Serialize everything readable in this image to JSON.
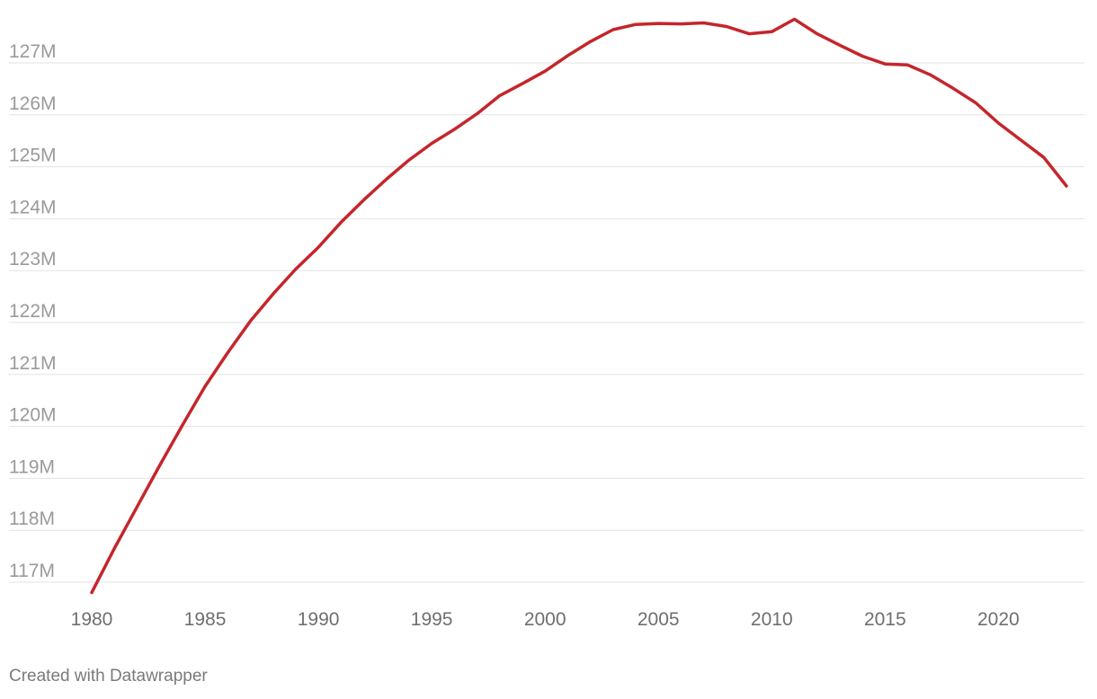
{
  "chart_data": {
    "type": "line",
    "title": "",
    "xlabel": "",
    "ylabel": "",
    "xlim": [
      1980,
      2023
    ],
    "ylim": [
      116.7,
      127.9
    ],
    "y_ticks": [
      117,
      118,
      119,
      120,
      121,
      122,
      123,
      124,
      125,
      126,
      127
    ],
    "y_tick_labels": [
      "117M",
      "118M",
      "119M",
      "120M",
      "121M",
      "122M",
      "123M",
      "124M",
      "125M",
      "126M",
      "127M"
    ],
    "x_ticks": [
      1980,
      1985,
      1990,
      1995,
      2000,
      2005,
      2010,
      2015,
      2020
    ],
    "x_tick_labels": [
      "1980",
      "1985",
      "1990",
      "1995",
      "2000",
      "2005",
      "2010",
      "2015",
      "2020"
    ],
    "grid": "horizontal",
    "series": [
      {
        "color": "#c4262b",
        "x": [
          1980,
          1981,
          1982,
          1983,
          1984,
          1985,
          1986,
          1987,
          1988,
          1989,
          1990,
          1991,
          1992,
          1993,
          1994,
          1995,
          1996,
          1997,
          1998,
          1999,
          2000,
          2001,
          2002,
          2003,
          2004,
          2005,
          2006,
          2007,
          2008,
          2009,
          2010,
          2011,
          2012,
          2013,
          2014,
          2015,
          2016,
          2017,
          2018,
          2019,
          2020,
          2021,
          2022,
          2023
        ],
        "y": [
          116.8,
          117.65,
          118.45,
          119.25,
          120.02,
          120.77,
          121.42,
          122.03,
          122.55,
          123.03,
          123.45,
          123.93,
          124.36,
          124.76,
          125.13,
          125.45,
          125.72,
          126.02,
          126.37,
          126.6,
          126.84,
          127.14,
          127.41,
          127.64,
          127.74,
          127.76,
          127.75,
          127.77,
          127.7,
          127.56,
          127.6,
          127.84,
          127.56,
          127.34,
          127.13,
          126.98,
          126.96,
          126.77,
          126.51,
          126.23,
          125.84,
          125.51,
          125.18,
          124.63
        ]
      }
    ]
  },
  "footer": {
    "credit": "Created with Datawrapper"
  }
}
